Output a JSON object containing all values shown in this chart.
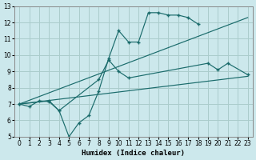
{
  "title": "",
  "xlabel": "Humidex (Indice chaleur)",
  "bg_color": "#cce8ec",
  "grid_color": "#aacccc",
  "line_color": "#1a6b6b",
  "xlim": [
    -0.5,
    23.5
  ],
  "ylim": [
    5,
    13
  ],
  "yticks": [
    5,
    6,
    7,
    8,
    9,
    10,
    11,
    12,
    13
  ],
  "xticks": [
    0,
    1,
    2,
    3,
    4,
    5,
    6,
    7,
    8,
    9,
    10,
    11,
    12,
    13,
    14,
    15,
    16,
    17,
    18,
    19,
    20,
    21,
    22,
    23
  ],
  "series": [
    {
      "x": [
        0,
        1,
        2,
        3,
        4,
        5,
        6,
        7,
        8,
        9,
        10,
        11,
        12,
        13,
        14,
        15,
        16,
        17,
        18,
        19,
        20,
        21,
        22,
        23
      ],
      "y": [
        7.0,
        6.85,
        7.2,
        7.15,
        6.6,
        5.0,
        5.85,
        6.3,
        7.8,
        9.8,
        11.5,
        10.8,
        10.8,
        12.6,
        12.6,
        12.45,
        12.45,
        12.3,
        11.9,
        null,
        null,
        null,
        null,
        null
      ]
    },
    {
      "x": [
        0,
        3,
        4,
        8,
        9,
        10,
        11,
        19,
        20,
        21,
        23
      ],
      "y": [
        7.0,
        7.2,
        6.6,
        8.5,
        9.7,
        9.0,
        8.6,
        9.5,
        9.1,
        9.5,
        8.8
      ]
    },
    {
      "x": [
        0,
        23
      ],
      "y": [
        7.0,
        12.3
      ]
    },
    {
      "x": [
        0,
        23
      ],
      "y": [
        7.0,
        8.7
      ]
    }
  ]
}
